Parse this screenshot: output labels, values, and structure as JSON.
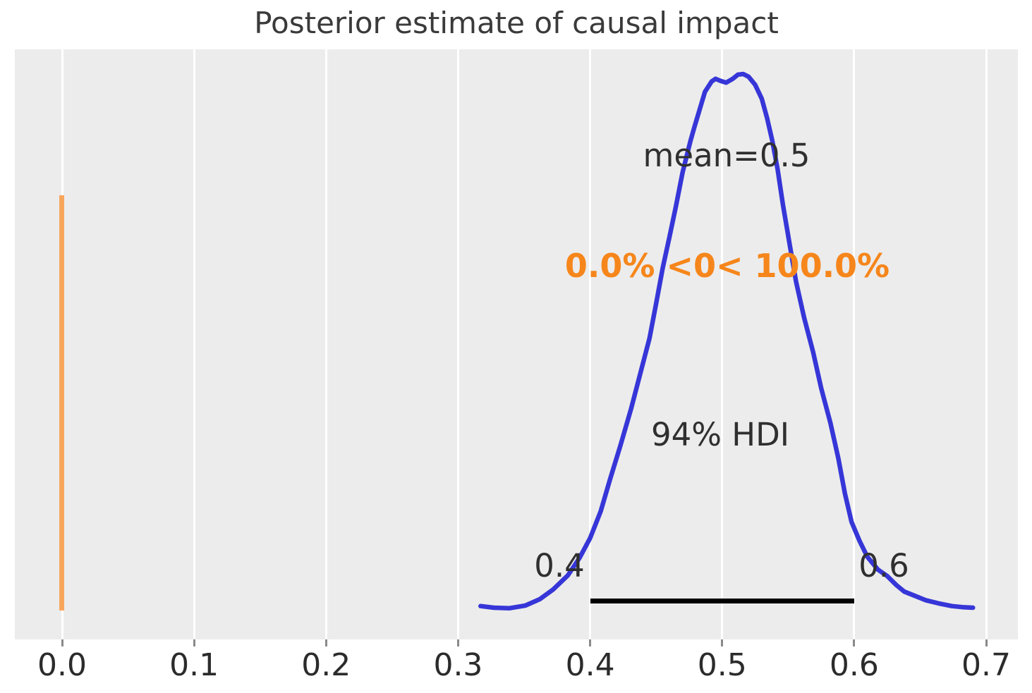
{
  "title": "Posterior estimate of causal impact",
  "annotations": {
    "mean_label": "mean=0.5",
    "ref_val_label": "0.0% <0< 100.0%",
    "hdi_label": "94% HDI",
    "hdi_lower_label": "0.4",
    "hdi_upper_label": "0.6"
  },
  "colors": {
    "plot_background": "#ececec",
    "gridline": "#ffffff",
    "kde_curve": "#3636d8",
    "reference_line": "#f8a55c",
    "reference_text": "#f6861b",
    "hdi_line": "#000000",
    "text": "#2f2f2f"
  },
  "chart_data": {
    "type": "line",
    "title": "Posterior estimate of causal impact",
    "xlabel": "",
    "ylabel": "",
    "xlim": [
      -0.036,
      0.724
    ],
    "x_ticks": [
      0.0,
      0.1,
      0.2,
      0.3,
      0.4,
      0.5,
      0.6,
      0.7
    ],
    "x_tick_labels": [
      "0.0",
      "0.1",
      "0.2",
      "0.3",
      "0.4",
      "0.5",
      "0.6",
      "0.7"
    ],
    "grid": true,
    "legend": false,
    "mean": 0.5,
    "hdi": {
      "prob_label": "94% HDI",
      "lower": 0.4,
      "upper": 0.6
    },
    "ref_val": {
      "value": 0,
      "pct_below": "0.0%",
      "pct_above": "100.0%",
      "label": "0.0% <0< 100.0%"
    },
    "series": [
      {
        "name": "posterior-kde",
        "x": [
          0.317,
          0.327,
          0.339,
          0.351,
          0.362,
          0.372,
          0.383,
          0.392,
          0.4,
          0.408,
          0.415,
          0.423,
          0.431,
          0.438,
          0.445,
          0.45,
          0.455,
          0.46,
          0.465,
          0.47,
          0.476,
          0.479,
          0.483,
          0.487,
          0.492,
          0.495,
          0.499,
          0.503,
          0.508,
          0.512,
          0.516,
          0.52,
          0.525,
          0.53,
          0.534,
          0.538,
          0.542,
          0.546,
          0.551,
          0.556,
          0.562,
          0.569,
          0.575,
          0.582,
          0.588,
          0.593,
          0.598,
          0.604,
          0.61,
          0.618,
          0.625,
          0.632,
          0.638,
          0.646,
          0.654,
          0.664,
          0.674,
          0.682,
          0.69
        ],
        "density_norm": [
          0.007,
          0.004,
          0.003,
          0.008,
          0.02,
          0.038,
          0.064,
          0.097,
          0.134,
          0.184,
          0.243,
          0.307,
          0.375,
          0.441,
          0.507,
          0.572,
          0.638,
          0.695,
          0.753,
          0.816,
          0.875,
          0.901,
          0.934,
          0.967,
          0.986,
          0.991,
          0.987,
          0.984,
          0.991,
          0.999,
          1.0,
          0.995,
          0.98,
          0.954,
          0.918,
          0.875,
          0.822,
          0.757,
          0.684,
          0.612,
          0.546,
          0.48,
          0.414,
          0.349,
          0.283,
          0.217,
          0.164,
          0.129,
          0.099,
          0.075,
          0.063,
          0.046,
          0.034,
          0.026,
          0.018,
          0.012,
          0.007,
          0.005,
          0.004
        ]
      }
    ]
  }
}
